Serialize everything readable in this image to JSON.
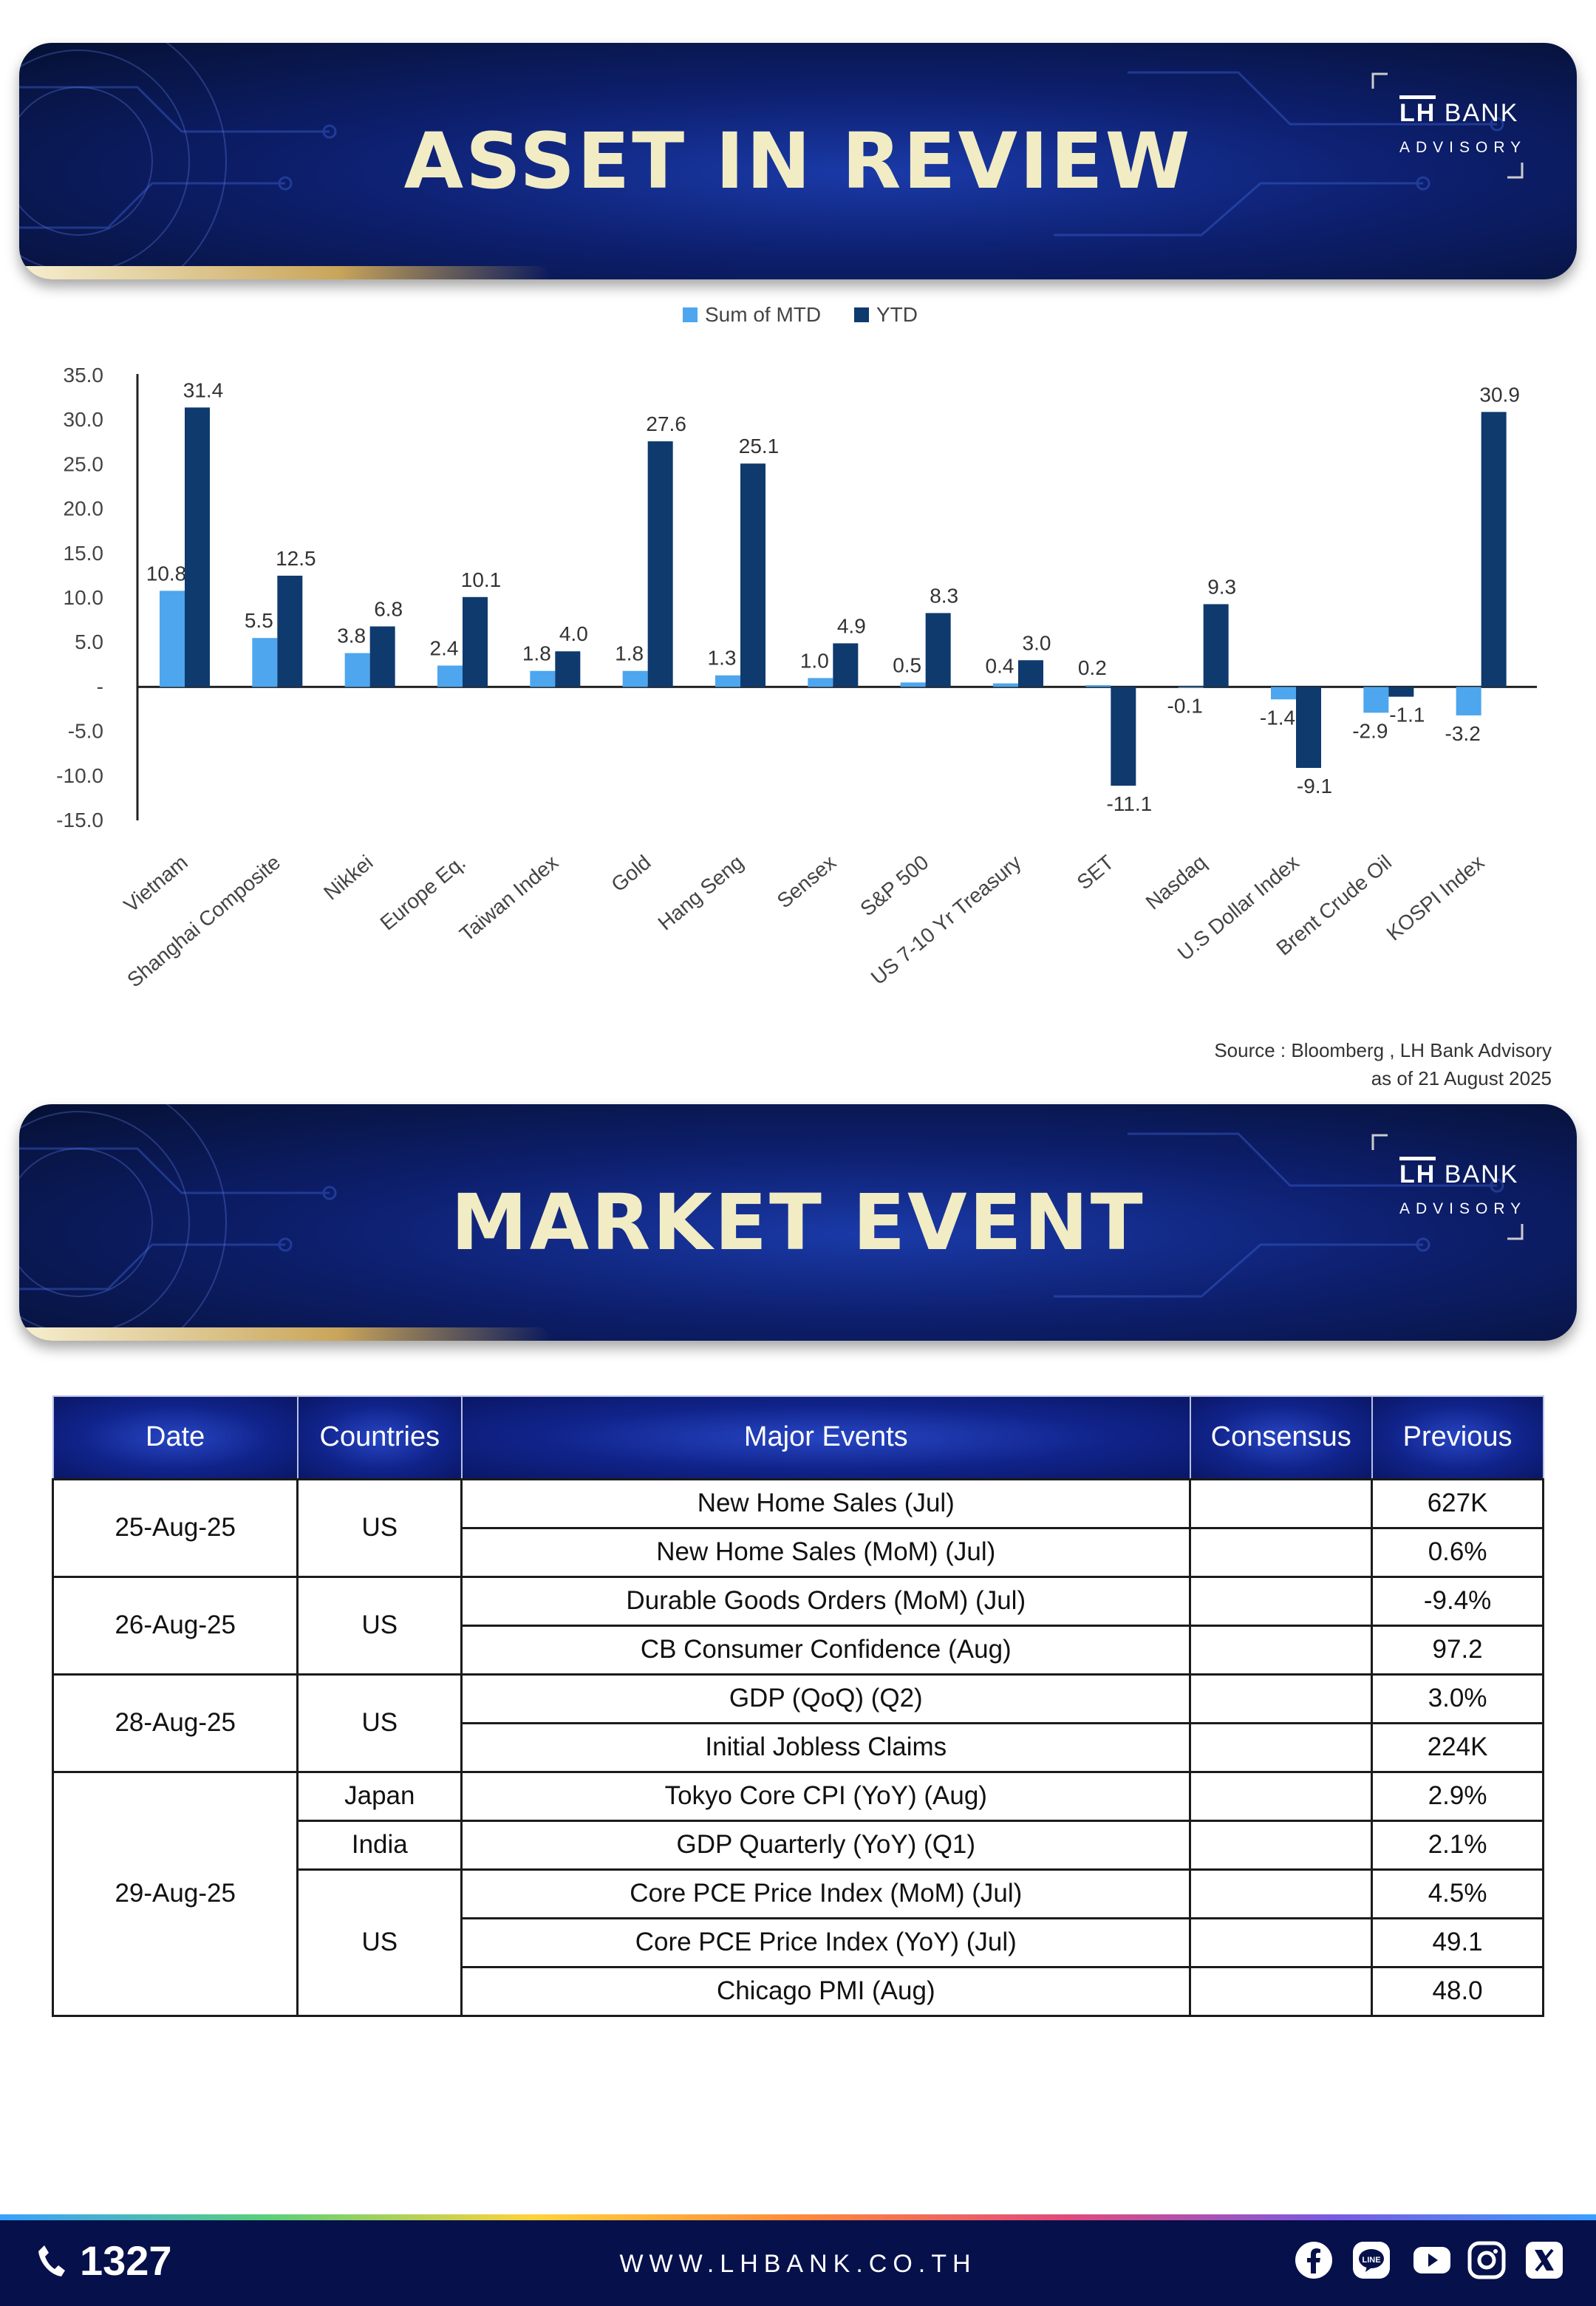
{
  "banner1": {
    "title": "ASSET IN REVIEW"
  },
  "banner2": {
    "title": "MARKET EVENT"
  },
  "logo": {
    "name_part1": "LH",
    "name_part2": "BANK",
    "sub": "ADVISORY"
  },
  "chart_data": {
    "type": "bar",
    "categories": [
      "Vietnam",
      "Shanghai Composite",
      "Nikkei",
      "Europe Eq.",
      "Taiwan Index",
      "Gold",
      "Hang Seng",
      "Sensex",
      "S&P 500",
      "US 7-10 Yr Treasury",
      "SET",
      "Nasdaq",
      "U.S Dollar Index",
      "Brent Crude Oil",
      "KOSPI Index"
    ],
    "series": [
      {
        "name": "Sum of MTD",
        "color": "#4da6ee",
        "values": [
          10.8,
          5.5,
          3.8,
          2.4,
          1.8,
          1.8,
          1.3,
          1.0,
          0.5,
          0.4,
          0.2,
          -0.1,
          -1.4,
          -2.9,
          -3.2
        ]
      },
      {
        "name": "YTD",
        "color": "#0e3a6e",
        "values": [
          31.4,
          12.5,
          6.8,
          10.1,
          4.0,
          27.6,
          25.1,
          4.9,
          8.3,
          3.0,
          -11.1,
          9.3,
          -9.1,
          -1.1,
          30.9
        ]
      }
    ],
    "ylim": [
      -15,
      35
    ],
    "yticks": [
      "35.0",
      "30.0",
      "25.0",
      "20.0",
      "15.0",
      "10.0",
      "5.0",
      "-",
      "-5.0",
      "-10.0",
      "-15.0"
    ],
    "legend_position": "top-center",
    "grid": false
  },
  "source": {
    "line1": "Source : Bloomberg , LH Bank Advisory",
    "line2": "as of 21 August 2025"
  },
  "events_table": {
    "headers": [
      "Date",
      "Countries",
      "Major Events",
      "Consensus",
      "Previous"
    ],
    "groups": [
      {
        "date": "25-Aug-25",
        "rows": [
          {
            "country": "US",
            "event": "New Home Sales (Jul)",
            "consensus": "",
            "previous": "627K"
          },
          {
            "country": "",
            "event": "New Home Sales (MoM) (Jul)",
            "consensus": "",
            "previous": "0.6%"
          }
        ]
      },
      {
        "date": "26-Aug-25",
        "rows": [
          {
            "country": "US",
            "event": "Durable Goods Orders (MoM) (Jul)",
            "consensus": "",
            "previous": "-9.4%"
          },
          {
            "country": "",
            "event": "CB Consumer Confidence (Aug)",
            "consensus": "",
            "previous": "97.2"
          }
        ]
      },
      {
        "date": "28-Aug-25",
        "rows": [
          {
            "country": "US",
            "event": "GDP (QoQ) (Q2)",
            "consensus": "",
            "previous": "3.0%"
          },
          {
            "country": "",
            "event": "Initial Jobless Claims",
            "consensus": "",
            "previous": "224K"
          }
        ]
      },
      {
        "date": "29-Aug-25",
        "rows": [
          {
            "country": "Japan",
            "event": "Tokyo Core CPI (YoY) (Aug)",
            "consensus": "",
            "previous": "2.9%"
          },
          {
            "country": "India",
            "event": "GDP Quarterly (YoY) (Q1)",
            "consensus": "",
            "previous": "2.1%"
          },
          {
            "country": "US",
            "event": "Core PCE Price Index (MoM) (Jul)",
            "consensus": "",
            "previous": "4.5%"
          },
          {
            "country": "",
            "event": "Core PCE Price Index (YoY) (Jul)",
            "consensus": "",
            "previous": "49.1"
          },
          {
            "country": "",
            "event": "Chicago PMI (Aug)",
            "consensus": "",
            "previous": "48.0"
          }
        ]
      }
    ]
  },
  "footer": {
    "phone": "1327",
    "url": "WWW.LHBANK.CO.TH",
    "social_icons": [
      "facebook-icon",
      "line-icon",
      "youtube-icon",
      "instagram-icon",
      "x-icon"
    ]
  }
}
